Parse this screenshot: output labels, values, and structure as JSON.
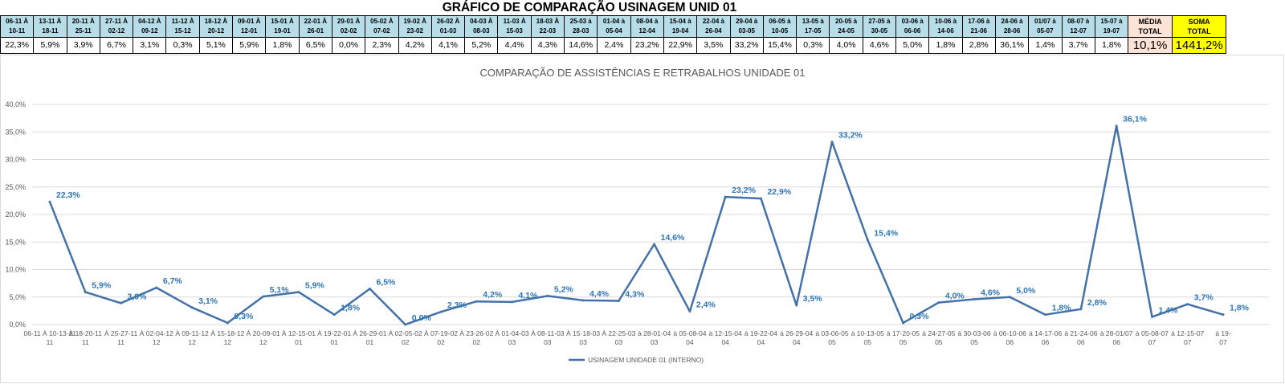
{
  "title": "GRÁFICO DE COMPARAÇÃO USINAGEM UNID 01",
  "table": {
    "periods": [
      [
        "06-11 À",
        "10-11"
      ],
      [
        "13-11 À",
        "18-11"
      ],
      [
        "20-11 À",
        "25-11"
      ],
      [
        "27-11 À",
        "02-12"
      ],
      [
        "04-12 À",
        "09-12"
      ],
      [
        "11-12 À",
        "15-12"
      ],
      [
        "18-12 À",
        "20-12"
      ],
      [
        "09-01 À",
        "12-01"
      ],
      [
        "15-01 À",
        "19-01"
      ],
      [
        "22-01 À",
        "26-01"
      ],
      [
        "29-01 À",
        "02-02"
      ],
      [
        "05-02 À",
        "07-02"
      ],
      [
        "19-02 À",
        "23-02"
      ],
      [
        "26-02 À",
        "01-03"
      ],
      [
        "04-03 À",
        "08-03"
      ],
      [
        "11-03 À",
        "15-03"
      ],
      [
        "18-03 À",
        "22-03"
      ],
      [
        "25-03 à",
        "28-03"
      ],
      [
        "01-04 à",
        "05-04"
      ],
      [
        "08-04 à",
        "12-04"
      ],
      [
        "15-04 à",
        "19-04"
      ],
      [
        "22-04 à",
        "26-04"
      ],
      [
        "29-04 à",
        "03-05"
      ],
      [
        "06-05 à",
        "10-05"
      ],
      [
        "13-05 à",
        "17-05"
      ],
      [
        "20-05 à",
        "24-05"
      ],
      [
        "27-05 à",
        "30-05"
      ],
      [
        "03-06 à",
        "06-06"
      ],
      [
        "10-06 à",
        "14-06"
      ],
      [
        "17-06 à",
        "21-06"
      ],
      [
        "24-06 à",
        "28-06"
      ],
      [
        "01/07 à",
        "05-07"
      ],
      [
        "08-07 à",
        "12-07"
      ],
      [
        "15-07 à",
        "19-07"
      ]
    ],
    "values": [
      "22,3%",
      "5,9%",
      "3,9%",
      "6,7%",
      "3,1%",
      "0,3%",
      "5,1%",
      "5,9%",
      "1,8%",
      "6,5%",
      "0,0%",
      "2,3%",
      "4,2%",
      "4,1%",
      "5,2%",
      "4,4%",
      "4,3%",
      "14,6%",
      "2,4%",
      "23,2%",
      "22,9%",
      "3,5%",
      "33,2%",
      "15,4%",
      "0,3%",
      "4,0%",
      "4,6%",
      "5,0%",
      "1,8%",
      "2,8%",
      "36,1%",
      "1,4%",
      "3,7%",
      "1,8%"
    ],
    "media_label": [
      "MÉDIA",
      "TOTAL"
    ],
    "media_value": "10,1%",
    "soma_label": [
      "SOMA",
      "TOTAL"
    ],
    "soma_value": "1441,2%"
  },
  "chart_data": {
    "type": "line",
    "title": "COMPARAÇÃO DE ASSISTÊNCIAS E RETRABALHOS UNIDADE 01",
    "xlabel": "",
    "ylabel": "",
    "ylim": [
      0,
      40
    ],
    "yticks": [
      0,
      5,
      10,
      15,
      20,
      25,
      30,
      35,
      40
    ],
    "ytick_labels": [
      "0,0%",
      "5,0%",
      "10,0%",
      "15,0%",
      "20,0%",
      "25,0%",
      "30,0%",
      "35,0%",
      "40,0%"
    ],
    "grid": true,
    "legend_position": "bottom",
    "categories": [
      [
        "06-11 À 10-13-11",
        "11"
      ],
      [
        "À 18-20-11",
        "11"
      ],
      [
        "À 25-27-11",
        "11"
      ],
      [
        "À 02-04-12",
        "12"
      ],
      [
        "À 09-11-12",
        "12"
      ],
      [
        "À 15-18-12",
        "12"
      ],
      [
        "À 20-09-01",
        "12"
      ],
      [
        "À 12-15-01",
        "01"
      ],
      [
        "À 19-22-01",
        "01"
      ],
      [
        "À 26-29-01",
        "01"
      ],
      [
        "À 02-05-02",
        "02"
      ],
      [
        "À 07-19-02",
        "02"
      ],
      [
        "À 23-26-02",
        "02"
      ],
      [
        "À 01-04-03",
        "03"
      ],
      [
        "À 08-11-03",
        "03"
      ],
      [
        "À 15-18-03",
        "03"
      ],
      [
        "À 22-25-03",
        "03"
      ],
      [
        "à 28-01-04",
        "03"
      ],
      [
        "à 05-08-04",
        "04"
      ],
      [
        "à 12-15-04",
        "04"
      ],
      [
        "à 19-22-04",
        "04"
      ],
      [
        "à 26-29-04",
        "04"
      ],
      [
        "à 03-06-05",
        "05"
      ],
      [
        "à 10-13-05",
        "05"
      ],
      [
        "à 17-20-05",
        "05"
      ],
      [
        "à 24-27-05",
        "05"
      ],
      [
        "à 30-03-06",
        "05"
      ],
      [
        "à 06-10-06",
        "06"
      ],
      [
        "à 14-17-06",
        "06"
      ],
      [
        "à 21-24-06",
        "06"
      ],
      [
        "à 28-01/07",
        "06"
      ],
      [
        "à 05-08-07",
        "07"
      ],
      [
        "à 12-15-07",
        "07"
      ],
      [
        "à 19-",
        "07"
      ]
    ],
    "series": [
      {
        "name": "USINAGEM UNIDADE 01 (INTERNO)",
        "color": "#4472a8",
        "values": [
          22.3,
          5.9,
          3.9,
          6.7,
          3.1,
          0.3,
          5.1,
          5.9,
          1.8,
          6.5,
          0.0,
          2.3,
          4.2,
          4.1,
          5.2,
          4.4,
          4.3,
          14.6,
          2.4,
          23.2,
          22.9,
          3.5,
          33.2,
          15.4,
          0.3,
          4.0,
          4.6,
          5.0,
          1.8,
          2.8,
          36.1,
          1.4,
          3.7,
          1.8
        ],
        "labels": [
          "22,3%",
          "5,9%",
          "3,9%",
          "6,7%",
          "3,1%",
          "0,3%",
          "5,1%",
          "5,9%",
          "1,8%",
          "6,5%",
          "0,0%",
          "2,3%",
          "4,2%",
          "4,1%",
          "5,2%",
          "4,4%",
          "4,3%",
          "14,6%",
          "2,4%",
          "23,2%",
          "22,9%",
          "3,5%",
          "33,2%",
          "15,4%",
          "0,3%",
          "4,0%",
          "4,6%",
          "5,0%",
          "1,8%",
          "2,8%",
          "36,1%",
          "1,4%",
          "3,7%",
          "1,8%"
        ]
      }
    ]
  }
}
